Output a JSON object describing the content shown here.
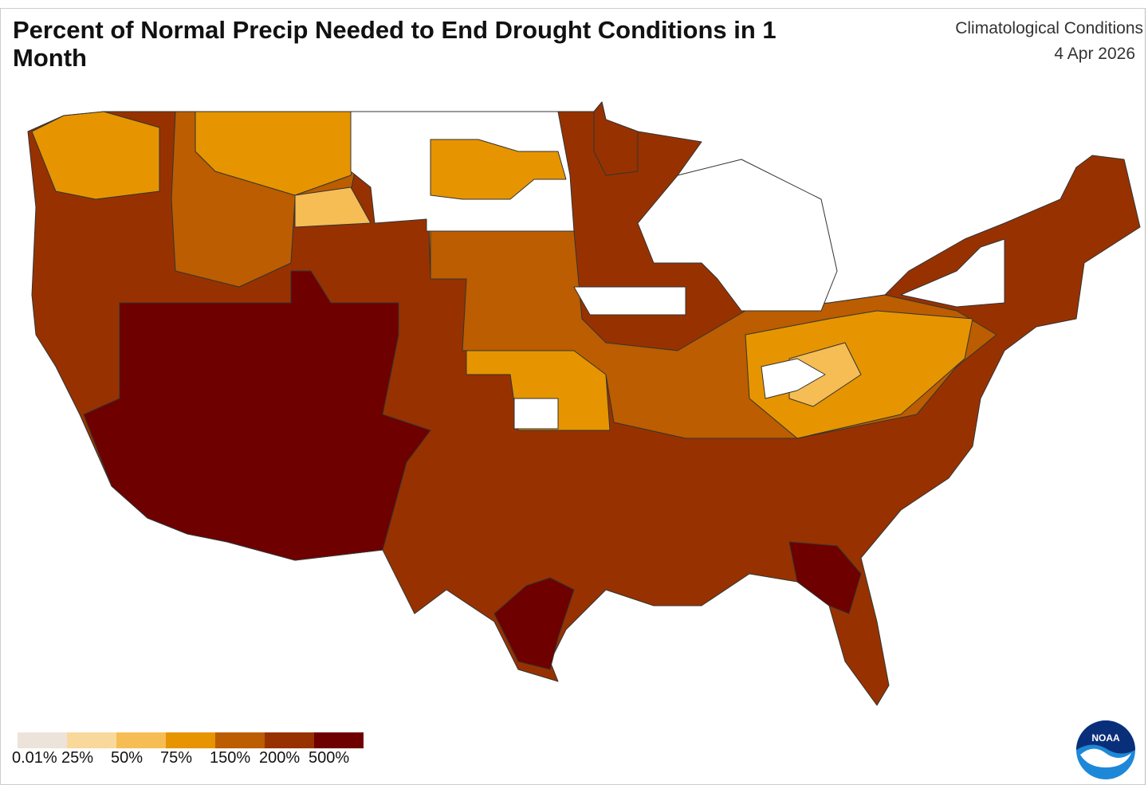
{
  "header": {
    "title": "Percent of Normal Precip Needed to End Drought Conditions in 1 Month",
    "subtitle": "Climatological Conditions",
    "date": "4 Apr 2026"
  },
  "legend": [
    {
      "label": "0.01%",
      "color": "#ece4da"
    },
    {
      "label": "25%",
      "color": "#f9d89c"
    },
    {
      "label": "50%",
      "color": "#f6bd55"
    },
    {
      "label": "75%",
      "color": "#e69500"
    },
    {
      "label": "150%",
      "color": "#bb5d00"
    },
    {
      "label": "200%",
      "color": "#973200"
    },
    {
      "label": "500%",
      "color": "#6f0000"
    }
  ],
  "map": {
    "no_drought_color": "#ffffff",
    "border_color": "#333333"
  },
  "logo": {
    "text": "NOAA"
  }
}
